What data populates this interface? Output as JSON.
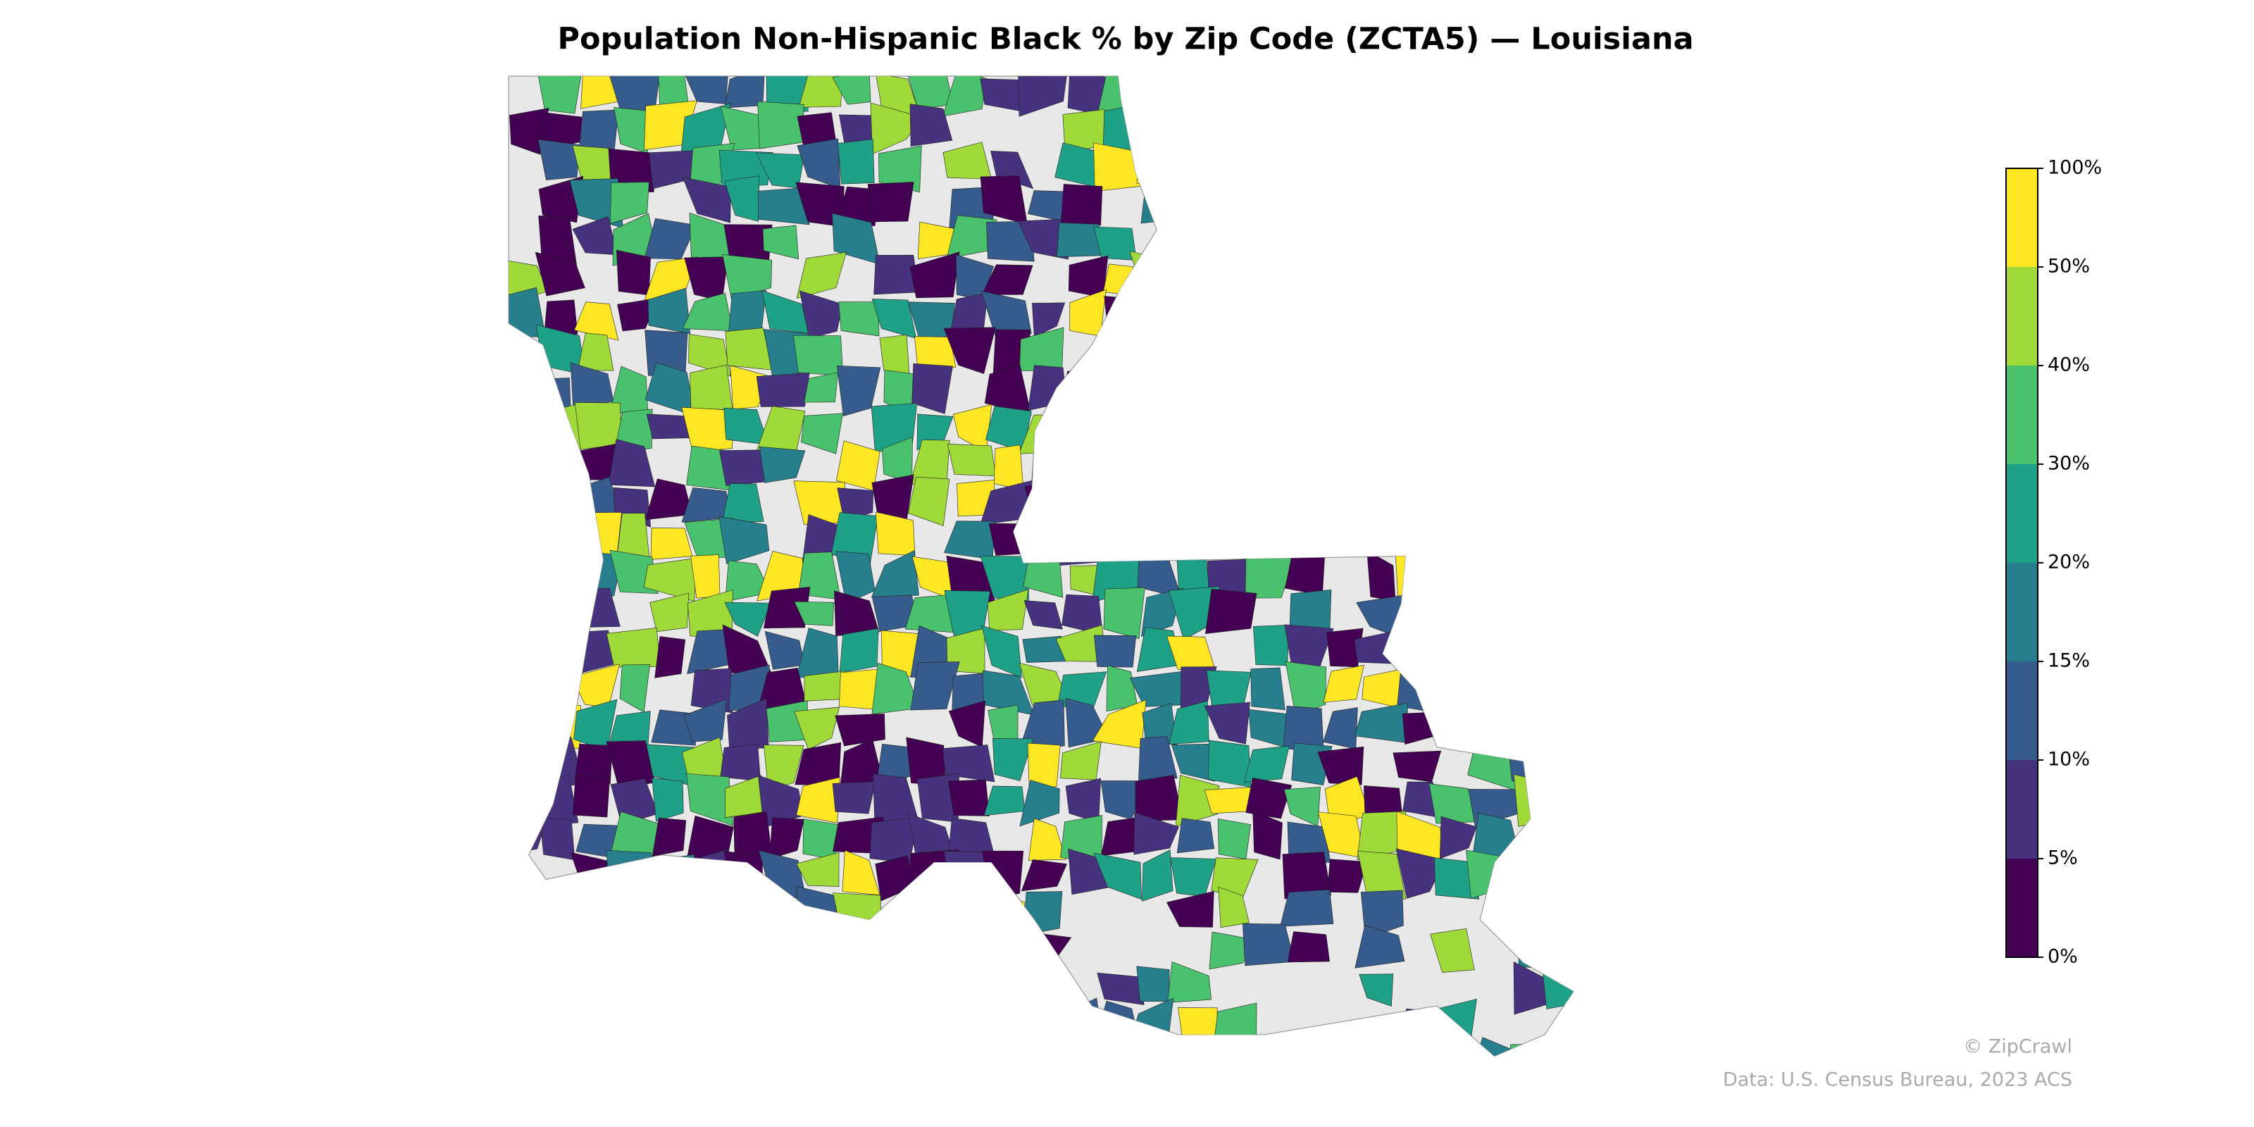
{
  "chart_data": {
    "type": "choropleth",
    "title": "Population Non-Hispanic Black % by Zip Code (ZCTA5) — Louisiana",
    "colorbar": {
      "ticks": [
        {
          "value": 0,
          "label": "0%"
        },
        {
          "value": 5,
          "label": "5%"
        },
        {
          "value": 10,
          "label": "10%"
        },
        {
          "value": 15,
          "label": "15%"
        },
        {
          "value": 20,
          "label": "20%"
        },
        {
          "value": 30,
          "label": "30%"
        },
        {
          "value": 40,
          "label": "40%"
        },
        {
          "value": 50,
          "label": "50%"
        },
        {
          "value": 100,
          "label": "100%"
        }
      ],
      "colors": [
        "#440154",
        "#46327e",
        "#365c8d",
        "#277f8e",
        "#1fa187",
        "#4ac16d",
        "#a0da39",
        "#fde725"
      ]
    },
    "credit": "© ZipCrawl",
    "source": "Data: U.S. Census Bureau, 2023 ACS"
  }
}
